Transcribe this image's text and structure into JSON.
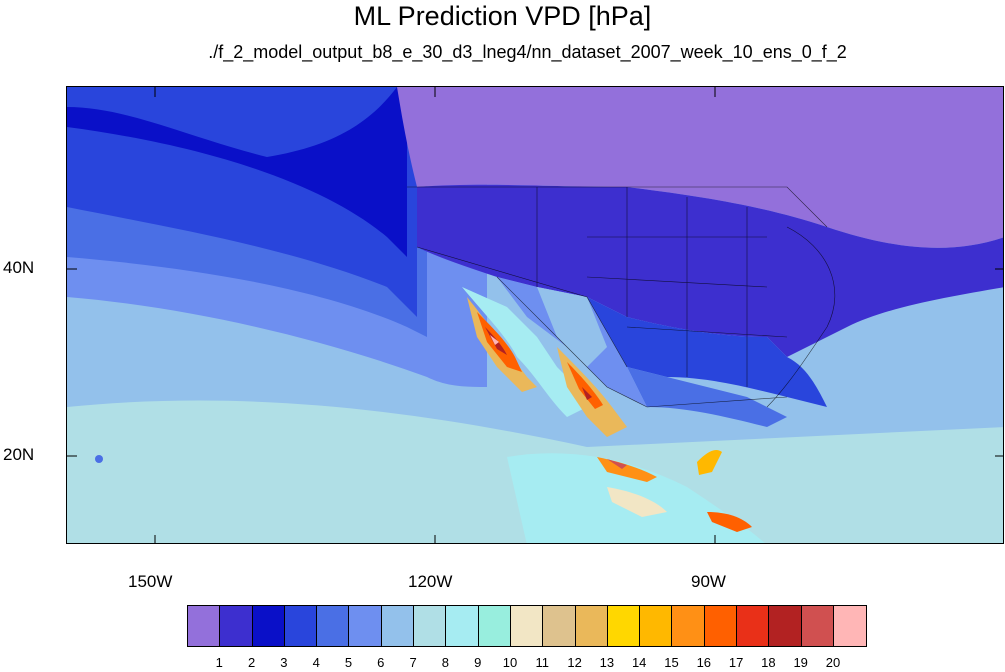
{
  "title": "ML Prediction VPD [hPa]",
  "subtitle": "./f_2_model_output_b8_e_30_d3_lneg4/nn_dataset_2007_week_10_ens_0_f_2",
  "axes": {
    "lat_labels": [
      "40N",
      "20N"
    ],
    "lon_labels": [
      "150W",
      "120W",
      "90W"
    ]
  },
  "colorbar": {
    "labels": [
      "1",
      "2",
      "3",
      "4",
      "5",
      "6",
      "7",
      "8",
      "9",
      "10",
      "11",
      "12",
      "13",
      "14",
      "15",
      "16",
      "17",
      "18",
      "19",
      "20"
    ],
    "colors": [
      "#9370db",
      "#3d2fcf",
      "#0a10c8",
      "#2945dc",
      "#4a6fe5",
      "#6e8ff0",
      "#93c1eb",
      "#b0dfe6",
      "#a6ecf2",
      "#98eede",
      "#f2e6c5",
      "#dec28e",
      "#eab85a",
      "#ffd700",
      "#ffb800",
      "#ff9015",
      "#ff6000",
      "#e93018",
      "#b22222",
      "#d05050",
      "#ffb6b6"
    ]
  },
  "map_legend": {
    "region_colors": {
      "ocean_north": "#0a10c8",
      "ocean_mid": "#2945dc",
      "ocean_south": "#93c1eb",
      "tropics": "#b0dfe6",
      "canada": "#9370db"
    }
  }
}
